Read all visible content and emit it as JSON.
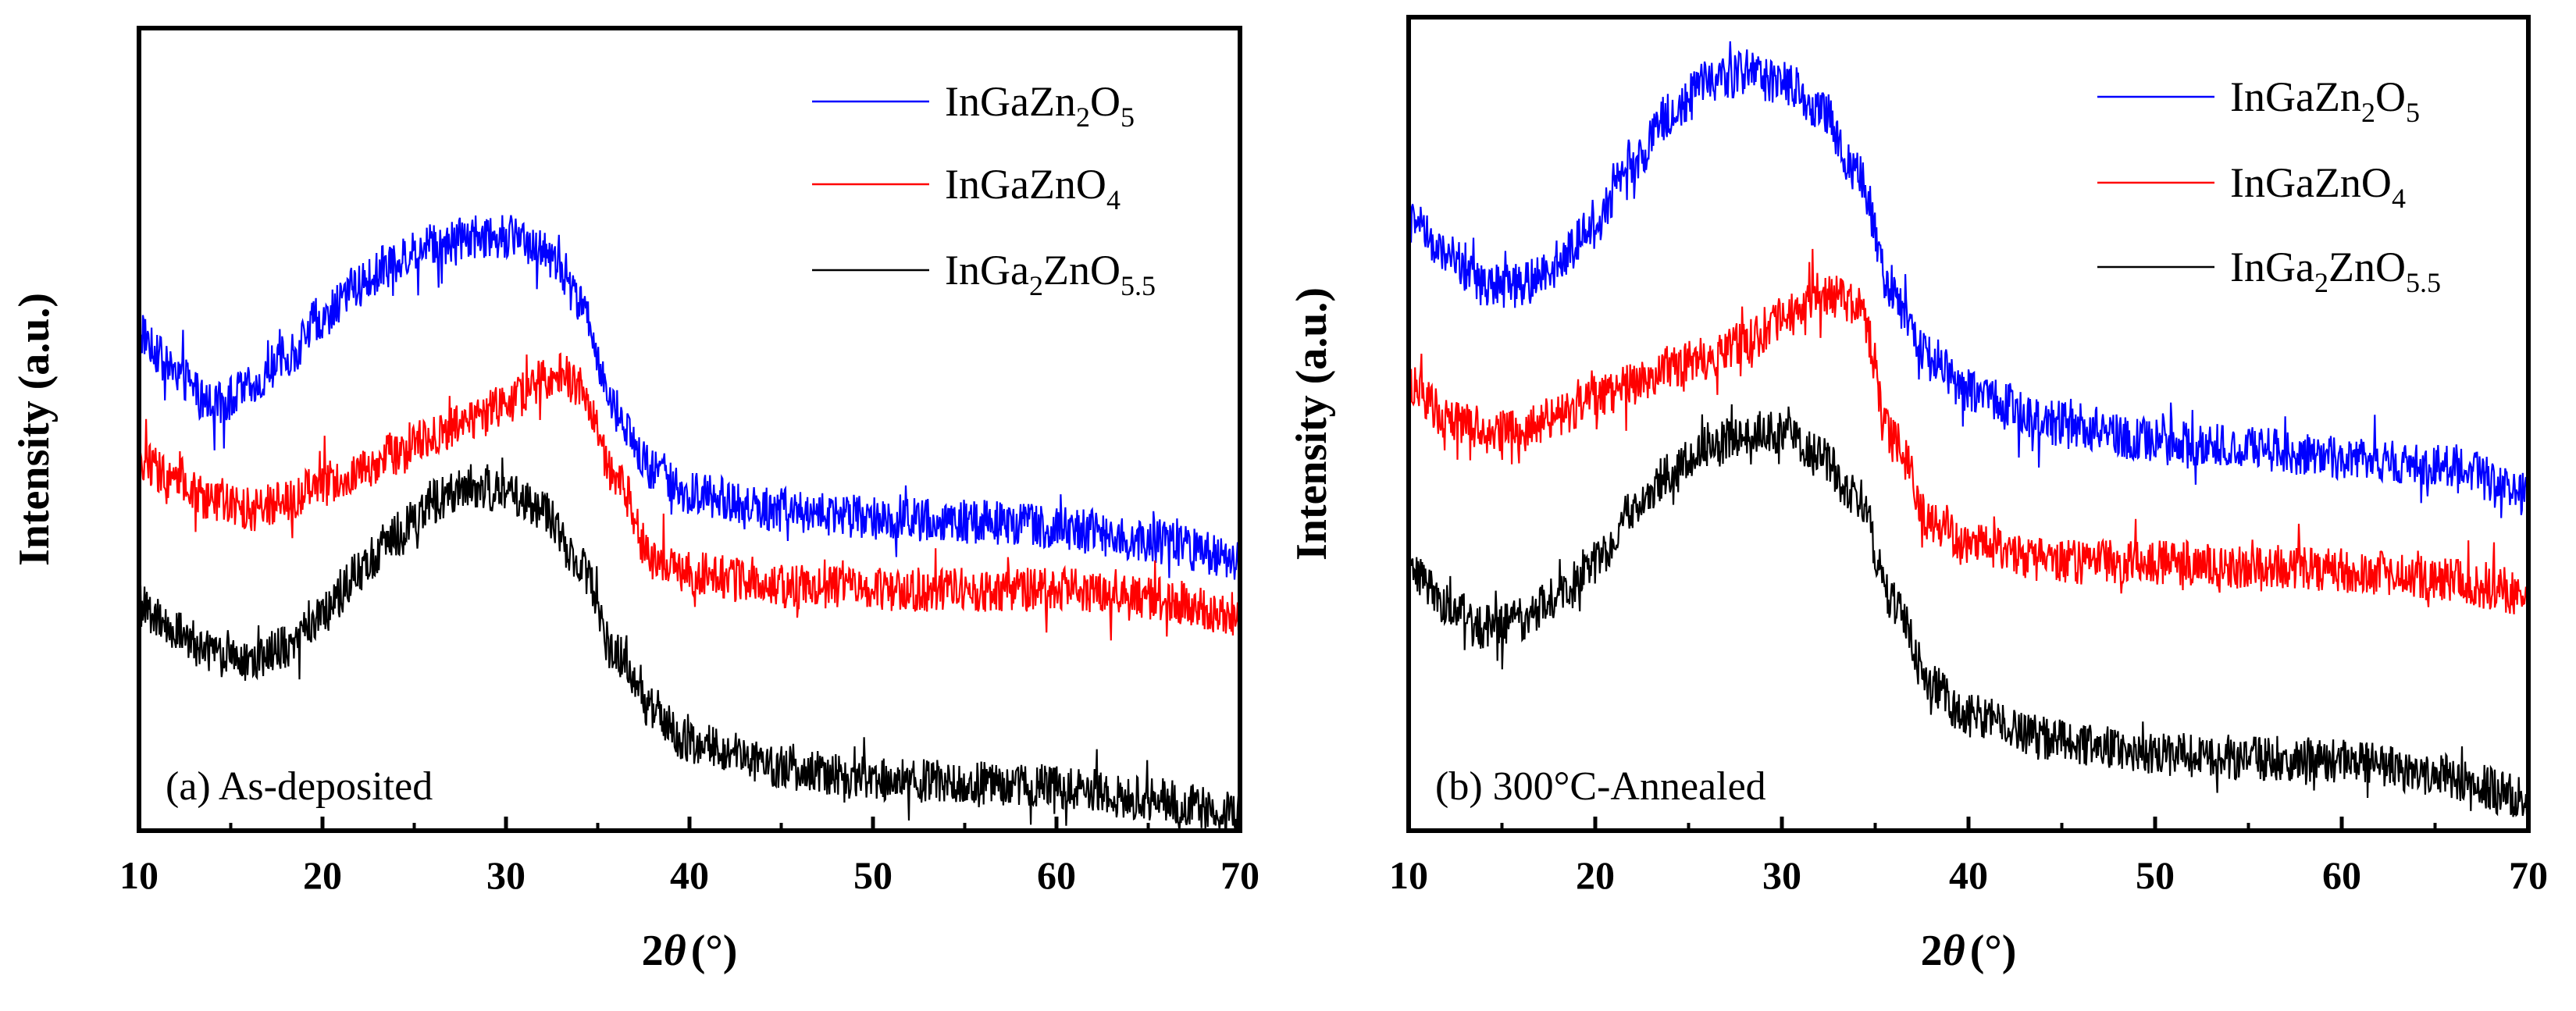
{
  "chart_data": [
    {
      "type": "line",
      "panel": "a",
      "annotation": "(a) As-deposited",
      "xlabel_var": "2θ",
      "xlabel_unit": "(°)",
      "ylabel": "Intensity (a.u.)",
      "xlim": [
        10,
        70
      ],
      "xticks": [
        "10",
        "20",
        "30",
        "40",
        "50",
        "60",
        "70"
      ],
      "yticks": [],
      "legend_position": "top-right",
      "series": [
        {
          "name": "InGaZn2O5",
          "label_parts": [
            [
              "InGaZn",
              ""
            ],
            [
              "2",
              "sub"
            ],
            [
              "O",
              ""
            ],
            [
              "5",
              "sub"
            ]
          ],
          "color": "#0000ff",
          "x": [
            10,
            12,
            14,
            16,
            18,
            20,
            22,
            24,
            26,
            28,
            30,
            32,
            34,
            36,
            38,
            40,
            45,
            50,
            55,
            60,
            65,
            70
          ],
          "values": [
            62,
            57,
            53,
            55,
            59,
            64,
            68,
            71,
            73,
            74,
            74,
            73,
            66,
            52,
            45,
            42,
            40,
            39,
            38.5,
            38,
            36,
            34
          ]
        },
        {
          "name": "InGaZnO4",
          "label_parts": [
            [
              "InGaZnO",
              ""
            ],
            [
              "4",
              "sub"
            ]
          ],
          "color": "#ff0000",
          "x": [
            10,
            12,
            14,
            16,
            18,
            20,
            22,
            24,
            26,
            28,
            30,
            32,
            33,
            34,
            36,
            38,
            40,
            45,
            50,
            55,
            60,
            65,
            70
          ],
          "values": [
            46,
            44,
            41,
            40,
            41,
            43,
            45,
            47,
            49,
            51,
            53,
            56,
            57,
            55,
            44,
            34,
            32,
            30.5,
            30,
            30,
            30,
            29,
            27
          ]
        },
        {
          "name": "InGa2ZnO5.5",
          "label_parts": [
            [
              "InGa",
              ""
            ],
            [
              "2",
              "sub"
            ],
            [
              "ZnO",
              ""
            ],
            [
              "5.5",
              "sub"
            ]
          ],
          "color": "#000000",
          "x": [
            10,
            12,
            14,
            16,
            18,
            20,
            22,
            24,
            26,
            28,
            30,
            32,
            34,
            36,
            38,
            40,
            45,
            50,
            55,
            60,
            65,
            70
          ],
          "values": [
            28,
            25,
            22,
            21,
            23,
            27,
            32,
            37,
            41,
            43,
            42,
            40,
            33,
            22,
            15,
            11,
            8,
            6.5,
            6,
            5.5,
            4,
            2
          ]
        }
      ]
    },
    {
      "type": "line",
      "panel": "b",
      "annotation": "(b) 300°C-Annealed",
      "xlabel_var": "2θ",
      "xlabel_unit": "(°)",
      "ylabel": "Intensity (a.u.)",
      "xlim": [
        10,
        70
      ],
      "xticks": [
        "10",
        "20",
        "30",
        "40",
        "50",
        "60",
        "70"
      ],
      "yticks": [],
      "legend_position": "top-right",
      "series": [
        {
          "name": "InGaZn2O5",
          "label_parts": [
            [
              "InGaZn",
              ""
            ],
            [
              "2",
              "sub"
            ],
            [
              "O",
              ""
            ],
            [
              "5",
              "sub"
            ]
          ],
          "color": "#0000ff",
          "x": [
            10,
            12,
            14,
            16,
            18,
            20,
            22,
            24,
            26,
            28,
            30,
            32,
            34,
            36,
            38,
            40,
            45,
            50,
            55,
            60,
            65,
            70
          ],
          "values": [
            75,
            71,
            67,
            67,
            70,
            75,
            82,
            88,
            92,
            93,
            92,
            89,
            81,
            66,
            58,
            54,
            50,
            48,
            47,
            46,
            45,
            42
          ]
        },
        {
          "name": "InGaZnO4",
          "label_parts": [
            [
              "InGaZnO",
              ""
            ],
            [
              "4",
              "sub"
            ]
          ],
          "color": "#ff0000",
          "x": [
            10,
            12,
            14,
            16,
            18,
            20,
            22,
            24,
            26,
            28,
            30,
            32,
            34,
            36,
            38,
            40,
            45,
            50,
            55,
            60,
            65,
            70
          ],
          "values": [
            55,
            51,
            49,
            49,
            51,
            53,
            55,
            57,
            58,
            60,
            63,
            66,
            65,
            48,
            38,
            35,
            33,
            33,
            32.5,
            32,
            31,
            29
          ]
        },
        {
          "name": "InGa2ZnO5.5",
          "label_parts": [
            [
              "InGa",
              ""
            ],
            [
              "2",
              "sub"
            ],
            [
              "ZnO",
              ""
            ],
            [
              "5.5",
              "sub"
            ]
          ],
          "color": "#000000",
          "x": [
            10,
            12,
            14,
            16,
            18,
            20,
            22,
            24,
            26,
            28,
            30,
            32,
            34,
            36,
            38,
            40,
            45,
            50,
            55,
            60,
            65,
            70
          ],
          "values": [
            32,
            28,
            25,
            26,
            29,
            33,
            39,
            44,
            47,
            49,
            49,
            46,
            41,
            28,
            18,
            14,
            11,
            9.5,
            9,
            8.5,
            7,
            4
          ]
        }
      ]
    }
  ]
}
